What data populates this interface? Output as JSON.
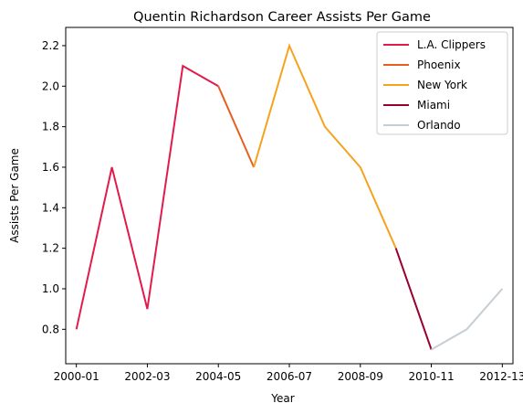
{
  "chart_data": {
    "type": "line",
    "title": "Quentin Richardson Career Assists Per Game",
    "xlabel": "Year",
    "ylabel": "Assists Per Game",
    "x_ticks": [
      "2000-01",
      "2002-03",
      "2004-05",
      "2006-07",
      "2008-09",
      "2010-11",
      "2012-13"
    ],
    "ylim": [
      0.63,
      2.29
    ],
    "y_ticks": [
      0.8,
      1.0,
      1.2,
      1.4,
      1.6,
      1.8,
      2.0,
      2.2
    ],
    "grid": false,
    "legend_position": "top-right",
    "seasons": [
      "2000-01",
      "2001-02",
      "2002-03",
      "2003-04",
      "2004-05",
      "2005-06",
      "2006-07",
      "2007-08",
      "2008-09",
      "2009-10",
      "2010-11",
      "2011-12",
      "2012-13"
    ],
    "series": [
      {
        "name": "L.A. Clippers",
        "color": "#e31b4d",
        "points": [
          [
            "2000-01",
            0.8
          ],
          [
            "2001-02",
            1.6
          ],
          [
            "2002-03",
            0.9
          ],
          [
            "2003-04",
            2.1
          ],
          [
            "2004-05",
            2.0
          ]
        ]
      },
      {
        "name": "Phoenix",
        "color": "#e56020",
        "points": [
          [
            "2004-05",
            2.0
          ],
          [
            "2005-06",
            1.6
          ]
        ]
      },
      {
        "name": "New York",
        "color": "#f5a21d",
        "points": [
          [
            "2005-06",
            1.6
          ],
          [
            "2006-07",
            2.2
          ],
          [
            "2007-08",
            1.8
          ],
          [
            "2008-09",
            1.6
          ],
          [
            "2009-10",
            1.2
          ]
        ]
      },
      {
        "name": "Miami",
        "color": "#98002e",
        "points": [
          [
            "2009-10",
            1.2
          ],
          [
            "2010-11",
            0.7
          ]
        ]
      },
      {
        "name": "Orlando",
        "color": "#c4ced4",
        "points": [
          [
            "2010-11",
            0.7
          ],
          [
            "2011-12",
            0.8
          ],
          [
            "2012-13",
            1.0
          ]
        ]
      }
    ]
  }
}
